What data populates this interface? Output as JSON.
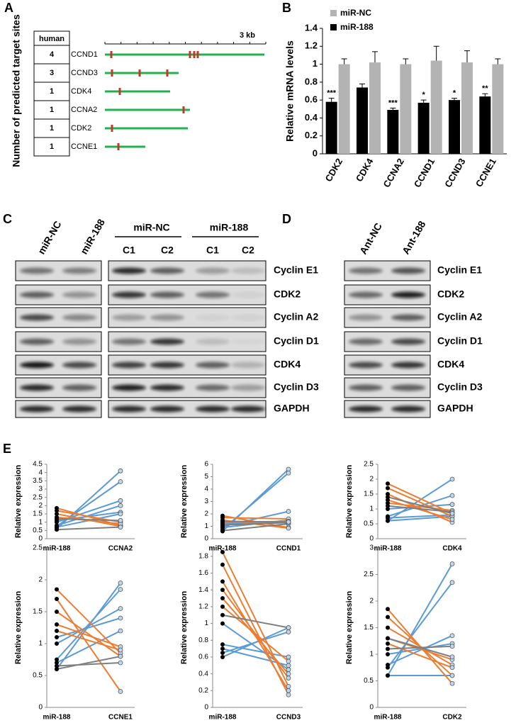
{
  "panel_labels": [
    "A",
    "B",
    "C",
    "D",
    "E"
  ],
  "panel_a": {
    "axis_label": "Number of predicted target sites",
    "header": "human",
    "scale": "3 kb",
    "rows": [
      {
        "sites": 4,
        "gene": "CCND1"
      },
      {
        "sites": 3,
        "gene": "CCND3"
      },
      {
        "sites": 1,
        "gene": "CDK4"
      },
      {
        "sites": 1,
        "gene": "CCNA2"
      },
      {
        "sites": 1,
        "gene": "CDK2"
      },
      {
        "sites": 1,
        "gene": "CCNE1"
      }
    ]
  },
  "panel_c": {
    "lanes_left": [
      "miR-NC",
      "miR-188"
    ],
    "groups": [
      {
        "name": "miR-NC",
        "lanes": [
          "C1",
          "C2"
        ]
      },
      {
        "name": "miR-188",
        "lanes": [
          "C1",
          "C2"
        ]
      }
    ],
    "proteins": [
      "Cyclin E1",
      "CDK2",
      "Cyclin A2",
      "Cyclin D1",
      "CDK4",
      "Cyclin D3",
      "GAPDH"
    ]
  },
  "panel_d": {
    "lanes": [
      "Ant-NC",
      "Ant-188"
    ],
    "proteins": [
      "Cyclin E1",
      "CDK2",
      "Cyclin A2",
      "Cyclin D1",
      "CDK4",
      "Cyclin D3",
      "GAPDH"
    ]
  },
  "chart_data": [
    {
      "type": "bar",
      "y_label": "Relative mRNA levels",
      "categories": [
        "CDK2",
        "CDK4",
        "CCNA2",
        "CCND1",
        "CCND3",
        "CCNE1"
      ],
      "series": [
        {
          "name": "miR-NC",
          "color": "#b3b3b3",
          "values": [
            1.0,
            1.02,
            1.0,
            1.04,
            1.02,
            1.0
          ],
          "errors": [
            0.06,
            0.12,
            0.06,
            0.16,
            0.13,
            0.06
          ]
        },
        {
          "name": "miR-188",
          "color": "#000000",
          "values": [
            0.58,
            0.74,
            0.49,
            0.57,
            0.6,
            0.64
          ],
          "errors": [
            0.04,
            0.04,
            0.02,
            0.03,
            0.02,
            0.03
          ]
        }
      ],
      "annotations": [
        "***",
        null,
        "***",
        "*",
        "*",
        "**"
      ],
      "ylim": [
        0,
        1.4
      ],
      "yticks": [
        0,
        0.2,
        0.4,
        0.6,
        0.8,
        1,
        1.2,
        1.4
      ]
    },
    {
      "type": "paired",
      "y_label": "Relative expression",
      "categories": [
        "miR-188",
        "CCNA2"
      ],
      "ylim": [
        0,
        4.5
      ],
      "yticks": [
        0,
        0.5,
        1,
        1.5,
        2,
        2.5,
        3,
        3.5,
        4,
        4.5
      ],
      "series": [
        {
          "color": "#5b9bd5",
          "values": [
            0.6,
            4.1
          ]
        },
        {
          "color": "#5b9bd5",
          "values": [
            0.75,
            3.45
          ]
        },
        {
          "color": "#5b9bd5",
          "values": [
            1.0,
            2.3
          ]
        },
        {
          "color": "#5b9bd5",
          "values": [
            0.8,
            2.0
          ]
        },
        {
          "color": "#5b9bd5",
          "values": [
            1.1,
            1.6
          ]
        },
        {
          "color": "#5b9bd5",
          "values": [
            0.7,
            1.5
          ]
        },
        {
          "color": "#ed7d31",
          "values": [
            1.85,
            0.8
          ]
        },
        {
          "color": "#ed7d31",
          "values": [
            1.7,
            1.0
          ]
        },
        {
          "color": "#ed7d31",
          "values": [
            1.5,
            0.75
          ]
        },
        {
          "color": "#ed7d31",
          "values": [
            1.3,
            0.9
          ]
        },
        {
          "color": "#7f7f7f",
          "values": [
            0.55,
            0.7
          ]
        },
        {
          "color": "#7f7f7f",
          "values": [
            1.2,
            1.1
          ]
        }
      ]
    },
    {
      "type": "paired",
      "y_label": "Relative expression",
      "categories": [
        "miR-188",
        "CCND1"
      ],
      "ylim": [
        0,
        6
      ],
      "yticks": [
        0,
        1,
        2,
        3,
        4,
        5,
        6
      ],
      "series": [
        {
          "color": "#5b9bd5",
          "values": [
            0.6,
            5.6
          ]
        },
        {
          "color": "#5b9bd5",
          "values": [
            0.75,
            5.3
          ]
        },
        {
          "color": "#5b9bd5",
          "values": [
            1.0,
            2.2
          ]
        },
        {
          "color": "#5b9bd5",
          "values": [
            0.9,
            1.5
          ]
        },
        {
          "color": "#5b9bd5",
          "values": [
            1.2,
            1.3
          ]
        },
        {
          "color": "#ed7d31",
          "values": [
            1.85,
            0.9
          ]
        },
        {
          "color": "#ed7d31",
          "values": [
            1.7,
            1.6
          ]
        },
        {
          "color": "#ed7d31",
          "values": [
            1.5,
            0.85
          ]
        },
        {
          "color": "#ed7d31",
          "values": [
            1.3,
            1.4
          ]
        },
        {
          "color": "#7f7f7f",
          "values": [
            0.65,
            1.2
          ]
        },
        {
          "color": "#7f7f7f",
          "values": [
            1.1,
            1.3
          ]
        },
        {
          "color": "#7f7f7f",
          "values": [
            1.4,
            1.35
          ]
        }
      ]
    },
    {
      "type": "paired",
      "y_label": "Relative expression",
      "categories": [
        "miR-188",
        "CDK4"
      ],
      "ylim": [
        0,
        2.5
      ],
      "yticks": [
        0,
        0.5,
        1,
        1.5,
        2,
        2.5
      ],
      "series": [
        {
          "color": "#5b9bd5",
          "values": [
            0.6,
            2.0
          ]
        },
        {
          "color": "#5b9bd5",
          "values": [
            0.75,
            1.45
          ]
        },
        {
          "color": "#5b9bd5",
          "values": [
            1.0,
            1.15
          ]
        },
        {
          "color": "#5b9bd5",
          "values": [
            0.6,
            0.75
          ]
        },
        {
          "color": "#5b9bd5",
          "values": [
            0.7,
            0.8
          ]
        },
        {
          "color": "#ed7d31",
          "values": [
            1.85,
            0.85
          ]
        },
        {
          "color": "#ed7d31",
          "values": [
            1.7,
            0.75
          ]
        },
        {
          "color": "#ed7d31",
          "values": [
            1.5,
            0.55
          ]
        },
        {
          "color": "#ed7d31",
          "values": [
            1.3,
            0.65
          ]
        },
        {
          "color": "#ed7d31",
          "values": [
            1.2,
            0.95
          ]
        },
        {
          "color": "#7f7f7f",
          "values": [
            1.1,
            0.9
          ]
        },
        {
          "color": "#7f7f7f",
          "values": [
            1.4,
            0.85
          ]
        }
      ]
    },
    {
      "type": "paired",
      "y_label": "Relative expression",
      "categories": [
        "miR-188",
        "CCNE1"
      ],
      "ylim": [
        0,
        2.5
      ],
      "yticks": [
        0,
        0.5,
        1,
        1.5,
        2,
        2.5
      ],
      "series": [
        {
          "color": "#5b9bd5",
          "values": [
            0.6,
            1.95
          ]
        },
        {
          "color": "#5b9bd5",
          "values": [
            0.75,
            1.85
          ]
        },
        {
          "color": "#5b9bd5",
          "values": [
            1.0,
            1.55
          ]
        },
        {
          "color": "#5b9bd5",
          "values": [
            1.1,
            1.4
          ]
        },
        {
          "color": "#5b9bd5",
          "values": [
            0.7,
            1.2
          ]
        },
        {
          "color": "#ed7d31",
          "values": [
            1.85,
            0.85
          ]
        },
        {
          "color": "#ed7d31",
          "values": [
            1.7,
            0.25
          ]
        },
        {
          "color": "#ed7d31",
          "values": [
            1.5,
            0.8
          ]
        },
        {
          "color": "#ed7d31",
          "values": [
            1.3,
            0.95
          ]
        },
        {
          "color": "#ed7d31",
          "values": [
            1.2,
            0.9
          ]
        },
        {
          "color": "#7f7f7f",
          "values": [
            0.6,
            0.8
          ]
        },
        {
          "color": "#7f7f7f",
          "values": [
            0.65,
            0.7
          ]
        }
      ]
    },
    {
      "type": "paired",
      "y_label": "Relative expression",
      "categories": [
        "miR-188",
        "CCND3"
      ],
      "ylim": [
        0,
        1.9
      ],
      "yticks": [
        0,
        0.2,
        0.4,
        0.6,
        0.8,
        1,
        1.2,
        1.4,
        1.6,
        1.8
      ],
      "series": [
        {
          "color": "#5b9bd5",
          "values": [
            0.6,
            0.95
          ]
        },
        {
          "color": "#5b9bd5",
          "values": [
            0.65,
            0.9
          ]
        },
        {
          "color": "#5b9bd5",
          "values": [
            0.75,
            0.6
          ]
        },
        {
          "color": "#5b9bd5",
          "values": [
            0.7,
            0.5
          ]
        },
        {
          "color": "#5b9bd5",
          "values": [
            1.0,
            0.45
          ]
        },
        {
          "color": "#ed7d31",
          "values": [
            1.85,
            0.25
          ]
        },
        {
          "color": "#ed7d31",
          "values": [
            1.7,
            0.15
          ]
        },
        {
          "color": "#ed7d31",
          "values": [
            1.5,
            0.2
          ]
        },
        {
          "color": "#ed7d31",
          "values": [
            1.4,
            0.35
          ]
        },
        {
          "color": "#ed7d31",
          "values": [
            1.3,
            0.4
          ]
        },
        {
          "color": "#ed7d31",
          "values": [
            1.2,
            0.55
          ]
        },
        {
          "color": "#7f7f7f",
          "values": [
            1.1,
            0.95
          ]
        }
      ]
    },
    {
      "type": "paired",
      "y_label": "Relative expression",
      "categories": [
        "miR-188",
        "CDK2"
      ],
      "ylim": [
        0,
        3
      ],
      "yticks": [
        0,
        0.5,
        1,
        1.5,
        2,
        2.5,
        3
      ],
      "series": [
        {
          "color": "#5b9bd5",
          "values": [
            0.6,
            2.7
          ]
        },
        {
          "color": "#5b9bd5",
          "values": [
            0.75,
            2.35
          ]
        },
        {
          "color": "#5b9bd5",
          "values": [
            0.8,
            1.35
          ]
        },
        {
          "color": "#5b9bd5",
          "values": [
            1.0,
            1.2
          ]
        },
        {
          "color": "#5b9bd5",
          "values": [
            0.6,
            0.6
          ]
        },
        {
          "color": "#ed7d31",
          "values": [
            1.85,
            0.45
          ]
        },
        {
          "color": "#ed7d31",
          "values": [
            1.7,
            0.6
          ]
        },
        {
          "color": "#ed7d31",
          "values": [
            1.5,
            0.8
          ]
        },
        {
          "color": "#ed7d31",
          "values": [
            1.3,
            0.9
          ]
        },
        {
          "color": "#ed7d31",
          "values": [
            1.2,
            0.75
          ]
        },
        {
          "color": "#7f7f7f",
          "values": [
            1.1,
            1.15
          ]
        },
        {
          "color": "#7f7f7f",
          "values": [
            1.3,
            0.95
          ]
        }
      ]
    }
  ]
}
